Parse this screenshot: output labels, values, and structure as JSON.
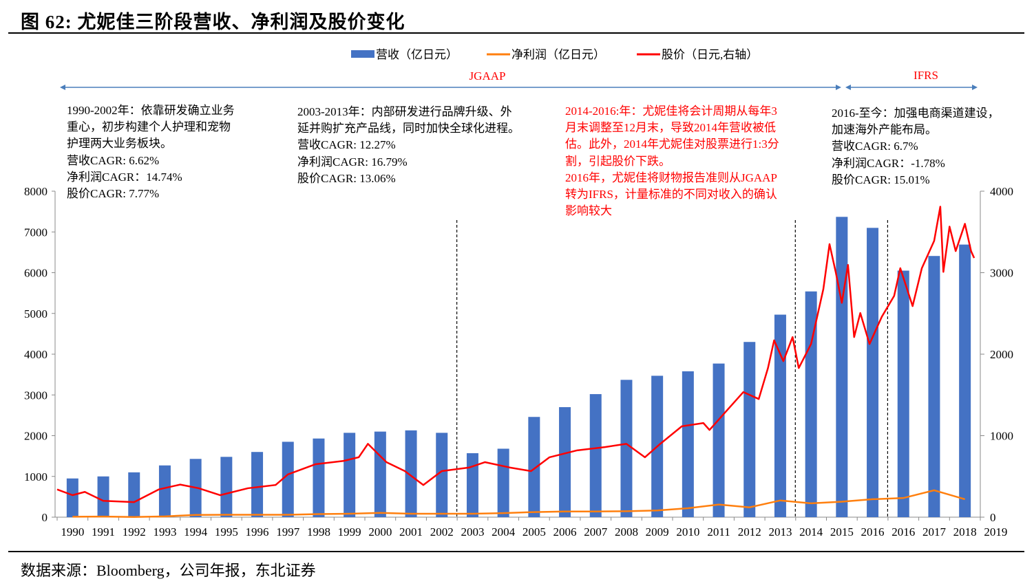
{
  "header": {
    "title": "图  62:  尤妮佳三阶段营收、净利润及股价变化"
  },
  "footer": {
    "source": "数据来源：Bloomberg，公司年报，东北证券"
  },
  "colors": {
    "revenue": "#4472c4",
    "net_profit": "#ff7f0e",
    "price": "#ff0000",
    "arrow": "#4a7ebb",
    "red_text": "#ff0000"
  },
  "periods": {
    "jgaap": "JGAAP",
    "ifrs": "IFRS"
  },
  "notes": [
    {
      "lines": [
        "1990-2002年：依靠研发确立业务",
        "重心，初步构建个人护理和宠物",
        "护理两大业务板块。",
        "营收CAGR:  6.62%",
        "净利润CAGR：14.74%",
        "股价CAGR:    7.77%"
      ],
      "color": "black"
    },
    {
      "lines": [
        "2003-2013年：内部研发进行品牌升级、外",
        "延并购扩充产品线，同时加快全球化进程。",
        "营收CAGR:  12.27%",
        "净利润CAGR:   16.79%",
        "股价CAGR:    13.06%"
      ],
      "color": "black"
    },
    {
      "lines": [
        "2014-2016:年：尤妮佳将会计周期从每年3",
        "月末调整至12月末，导致2014年营收被低",
        "估。此外，2014年尤妮佳对股票进行1:3分",
        "割，引起股价下跌。",
        "2016年，尤妮佳将财物报告准则从JGAAP",
        "转为IFRS，计量标准的不同对收入的确认",
        "影响较大"
      ],
      "color": "red"
    },
    {
      "lines": [
        "2016-至今：加强电商渠道建设，",
        "加速海外产能布局。",
        "营收CAGR:  6.7%",
        "净利润CAGR：-1.78%",
        "股价CAGR:    15.01%"
      ],
      "color": "black"
    }
  ],
  "chart_data": {
    "type": "bar+line",
    "legend": [
      "营收（亿日元）",
      "净利润（亿日元）",
      "股价（日元,右轴）"
    ],
    "legend_position": "top",
    "categories": [
      "1990",
      "1991",
      "1992",
      "1993",
      "1994",
      "1995",
      "1996",
      "1997",
      "1998",
      "1999",
      "2000",
      "2001",
      "2002",
      "2003",
      "2004",
      "2005",
      "2006",
      "2007",
      "2008",
      "2009",
      "2010",
      "2011",
      "2012",
      "2013",
      "2014",
      "2015",
      "2016",
      "2016",
      "2017",
      "2018",
      "2019"
    ],
    "y_left": {
      "range": [
        0,
        8000
      ],
      "ticks": [
        "0",
        "1000",
        "2000",
        "3000",
        "4000",
        "5000",
        "6000",
        "7000",
        "8000"
      ]
    },
    "y_right": {
      "range": [
        0,
        4000
      ],
      "ticks": [
        "0",
        "1000",
        "2000",
        "3000",
        "4000"
      ]
    },
    "grid": false,
    "series": [
      {
        "name": "营收（亿日元）",
        "type": "bar",
        "axis": "left",
        "values": [
          950,
          1000,
          1100,
          1270,
          1430,
          1480,
          1600,
          1850,
          1930,
          2070,
          2100,
          2130,
          2070,
          1570,
          1680,
          2460,
          2700,
          3020,
          3370,
          3470,
          3580,
          3770,
          4300,
          4970,
          5540,
          7370,
          7100,
          6050,
          6410,
          6690,
          null
        ]
      },
      {
        "name": "净利润（亿日元）",
        "type": "line",
        "axis": "left",
        "values": [
          10,
          15,
          5,
          20,
          55,
          60,
          60,
          60,
          75,
          85,
          105,
          85,
          85,
          85,
          100,
          125,
          140,
          140,
          145,
          165,
          220,
          310,
          240,
          410,
          340,
          380,
          440,
          470,
          660,
          440,
          null
        ]
      },
      {
        "name": "股价（日元,右轴）",
        "type": "line",
        "axis": "right",
        "points": [
          [
            1990.0,
            340
          ],
          [
            1990.5,
            270
          ],
          [
            1990.9,
            310
          ],
          [
            1991.5,
            200
          ],
          [
            1992.5,
            185
          ],
          [
            1993.3,
            340
          ],
          [
            1994.0,
            400
          ],
          [
            1994.6,
            355
          ],
          [
            1995.3,
            270
          ],
          [
            1996.2,
            355
          ],
          [
            1997.1,
            395
          ],
          [
            1997.5,
            525
          ],
          [
            1998.4,
            650
          ],
          [
            1999.3,
            690
          ],
          [
            1999.8,
            735
          ],
          [
            2000.1,
            900
          ],
          [
            2000.7,
            675
          ],
          [
            2001.3,
            565
          ],
          [
            2001.9,
            395
          ],
          [
            2002.5,
            565
          ],
          [
            2003.4,
            610
          ],
          [
            2003.9,
            675
          ],
          [
            2004.7,
            610
          ],
          [
            2005.4,
            565
          ],
          [
            2006.0,
            735
          ],
          [
            2006.9,
            820
          ],
          [
            2007.8,
            860
          ],
          [
            2008.5,
            900
          ],
          [
            2009.1,
            735
          ],
          [
            2009.6,
            900
          ],
          [
            2010.3,
            1115
          ],
          [
            2011.0,
            1155
          ],
          [
            2011.2,
            1070
          ],
          [
            2011.6,
            1240
          ],
          [
            2012.3,
            1535
          ],
          [
            2012.8,
            1450
          ],
          [
            2013.1,
            1830
          ],
          [
            2013.3,
            2170
          ],
          [
            2013.6,
            1915
          ],
          [
            2013.9,
            2210
          ],
          [
            2014.1,
            1830
          ],
          [
            2014.5,
            2125
          ],
          [
            2014.9,
            2800
          ],
          [
            2015.1,
            3350
          ],
          [
            2015.3,
            3010
          ],
          [
            2015.5,
            2630
          ],
          [
            2015.7,
            3095
          ],
          [
            2015.9,
            2210
          ],
          [
            2016.05,
            2505
          ],
          [
            2016.2,
            2125
          ],
          [
            2016.4,
            2460
          ],
          [
            2016.6,
            2715
          ],
          [
            2016.7,
            3055
          ],
          [
            2016.9,
            2590
          ],
          [
            2017.1,
            3055
          ],
          [
            2017.5,
            3390
          ],
          [
            2017.7,
            3810
          ],
          [
            2017.8,
            3010
          ],
          [
            2018.0,
            3565
          ],
          [
            2018.2,
            3265
          ],
          [
            2018.5,
            3600
          ],
          [
            2018.7,
            3265
          ],
          [
            2018.8,
            3180
          ]
        ]
      }
    ],
    "dividers_after": [
      "2002",
      "2013",
      "2016"
    ]
  }
}
